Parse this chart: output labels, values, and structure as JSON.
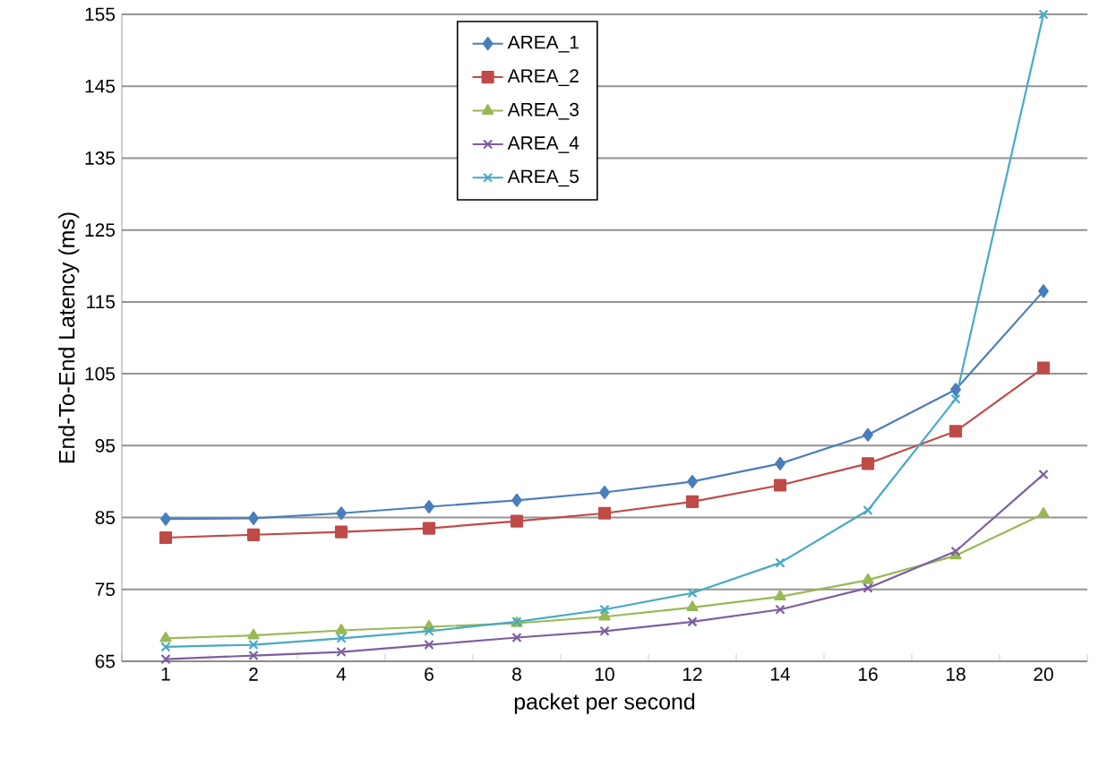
{
  "chart_data": {
    "type": "line",
    "xlabel": "packet per second",
    "ylabel": "End-To-End Latency (ms)",
    "categories": [
      "1",
      "2",
      "4",
      "6",
      "8",
      "10",
      "12",
      "14",
      "16",
      "18",
      "20"
    ],
    "ylim": [
      65,
      155
    ],
    "yticks": [
      65,
      75,
      85,
      95,
      105,
      115,
      125,
      135,
      145,
      155
    ],
    "grid": "y",
    "legend": "top",
    "series": [
      {
        "name": "AREA_1",
        "color": "#4a7ebb",
        "marker": "diamond",
        "values": [
          84.8,
          84.9,
          85.6,
          86.5,
          87.4,
          88.5,
          90.0,
          92.5,
          96.5,
          102.8,
          116.5
        ]
      },
      {
        "name": "AREA_2",
        "color": "#be4b48",
        "marker": "square",
        "values": [
          82.2,
          82.6,
          83.0,
          83.5,
          84.5,
          85.6,
          87.2,
          89.5,
          92.5,
          97.0,
          105.8
        ]
      },
      {
        "name": "AREA_3",
        "color": "#98b954",
        "marker": "triangle",
        "values": [
          68.2,
          68.6,
          69.3,
          69.8,
          70.3,
          71.2,
          72.5,
          74.0,
          76.3,
          79.7,
          85.5
        ]
      },
      {
        "name": "AREA_4",
        "color": "#7d5fa0",
        "marker": "cross",
        "values": [
          65.3,
          65.8,
          66.3,
          67.3,
          68.3,
          69.2,
          70.5,
          72.2,
          75.2,
          80.3,
          91.0
        ]
      },
      {
        "name": "AREA_5",
        "color": "#46aac5",
        "marker": "cross",
        "values": [
          67.0,
          67.3,
          68.2,
          69.2,
          70.5,
          72.2,
          74.5,
          78.7,
          86.0,
          101.5,
          155.0
        ]
      }
    ]
  }
}
